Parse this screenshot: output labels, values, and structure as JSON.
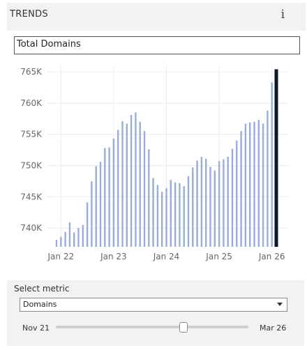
{
  "header": {
    "title": "TRENDS",
    "info_icon": "info-icon"
  },
  "metric_display": {
    "label": "Total Domains"
  },
  "chart_data": {
    "type": "bar",
    "x_tick_labels": [
      "Jan 22",
      "Jan 23",
      "Jan 24",
      "Jan 25",
      "Jan 26"
    ],
    "y_tick_labels": [
      "740K",
      "745K",
      "750K",
      "755K",
      "760K",
      "765K"
    ],
    "ylim": [
      737000,
      766000
    ],
    "grid": true,
    "bar_color": "#9aadd8",
    "highlight_color": "#101828",
    "values": [
      738100,
      738600,
      739400,
      740900,
      739300,
      740000,
      740500,
      744100,
      747500,
      749900,
      750600,
      752800,
      752900,
      754300,
      755700,
      757100,
      756700,
      758100,
      758500,
      757000,
      755500,
      752600,
      748000,
      746900,
      745800,
      746400,
      747700,
      747300,
      747200,
      746700,
      748300,
      749700,
      750800,
      751400,
      751100,
      749800,
      749200,
      750700,
      751000,
      751400,
      752700,
      754000,
      755500,
      756700,
      756900,
      757000,
      757300,
      756700,
      758800,
      763300,
      765400
    ],
    "highlight_index": 50
  },
  "controls": {
    "select_label": "Select metric",
    "select_value": "Domains",
    "range_start": "Nov 21",
    "range_end": "Mar 26",
    "slider_position": 0.66
  }
}
